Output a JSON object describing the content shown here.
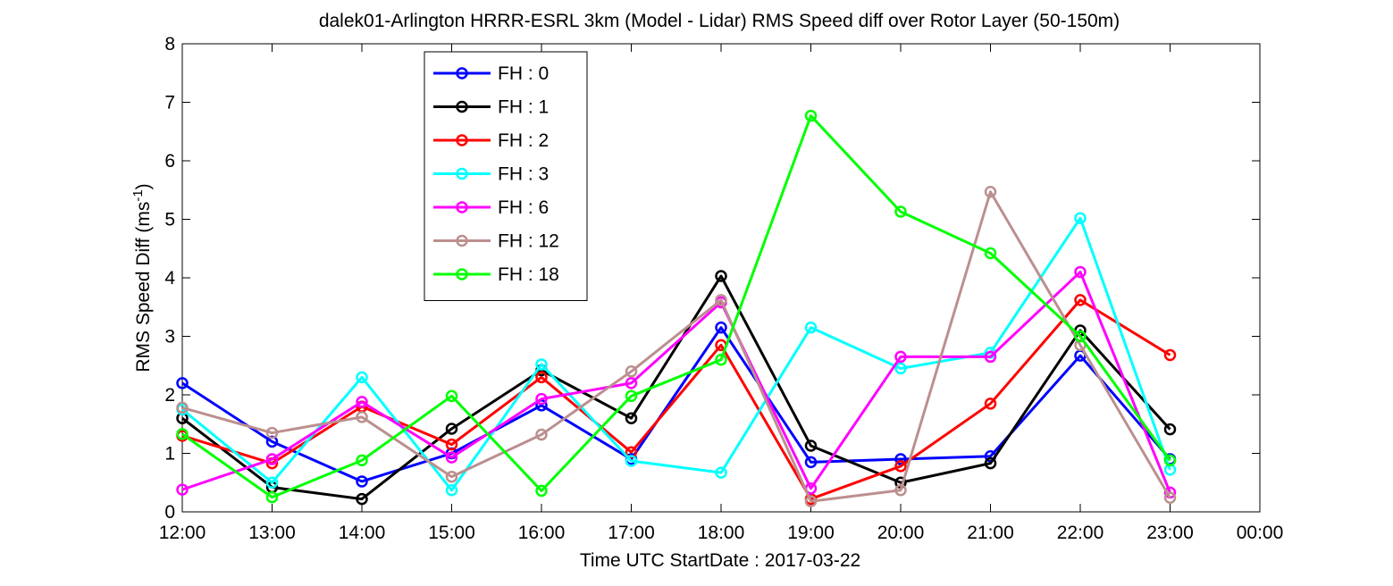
{
  "chart_data": {
    "type": "line",
    "title": "dalek01-Arlington HRRR-ESRL 3km (Model - Lidar) RMS Speed diff over Rotor Layer (50-150m)",
    "ylabel_main": "RMS Speed Diff (ms",
    "ylabel_sup": "-1",
    "ylabel_close": ")",
    "xlabel": "Time UTC    StartDate : 2017-03-22",
    "x_ticks": [
      "12:00",
      "13:00",
      "14:00",
      "15:00",
      "16:00",
      "17:00",
      "18:00",
      "19:00",
      "20:00",
      "21:00",
      "22:00",
      "23:00",
      "00:00"
    ],
    "y_ticks": [
      "0",
      "1",
      "2",
      "3",
      "4",
      "5",
      "6",
      "7",
      "8"
    ],
    "xlim": [
      12,
      24
    ],
    "ylim": [
      0,
      8
    ],
    "legend_position": "upper-left",
    "series": [
      {
        "name": "FH : 0",
        "color": "#0000ff",
        "x": [
          12,
          13,
          14,
          15,
          16,
          17,
          18,
          19,
          20,
          21,
          22,
          23
        ],
        "values": [
          2.2,
          1.2,
          0.52,
          1.0,
          1.82,
          0.9,
          3.15,
          0.85,
          0.9,
          0.95,
          2.67,
          0.9
        ]
      },
      {
        "name": "FH : 1",
        "color": "#000000",
        "x": [
          12,
          13,
          14,
          15,
          16,
          17,
          18,
          19,
          20,
          21,
          22,
          23
        ],
        "values": [
          1.6,
          0.42,
          0.22,
          1.42,
          2.42,
          1.6,
          4.03,
          1.13,
          0.5,
          0.83,
          3.1,
          1.41
        ]
      },
      {
        "name": "FH : 2",
        "color": "#ff0000",
        "x": [
          12,
          13,
          14,
          15,
          16,
          17,
          18,
          19,
          20,
          21,
          22,
          23
        ],
        "values": [
          1.3,
          0.83,
          1.8,
          1.15,
          2.3,
          1.02,
          2.85,
          0.22,
          0.78,
          1.85,
          3.62,
          2.68
        ]
      },
      {
        "name": "FH : 3",
        "color": "#00ffff",
        "x": [
          12,
          13,
          14,
          15,
          16,
          17,
          18,
          19,
          20,
          21,
          22,
          23
        ],
        "values": [
          1.75,
          0.5,
          2.3,
          0.37,
          2.52,
          0.87,
          0.67,
          3.15,
          2.45,
          2.72,
          5.02,
          0.72
        ]
      },
      {
        "name": "FH : 6",
        "color": "#ff00ff",
        "x": [
          12,
          13,
          14,
          15,
          16,
          17,
          18,
          19,
          20,
          21,
          22,
          23
        ],
        "values": [
          0.38,
          0.9,
          1.88,
          0.93,
          1.93,
          2.2,
          3.58,
          0.4,
          2.65,
          2.65,
          4.1,
          0.33
        ]
      },
      {
        "name": "FH : 12",
        "color": "#bc8f8f",
        "x": [
          12,
          13,
          14,
          15,
          16,
          17,
          18,
          19,
          20,
          21,
          22,
          23
        ],
        "values": [
          1.78,
          1.35,
          1.62,
          0.6,
          1.32,
          2.4,
          3.62,
          0.18,
          0.37,
          5.47,
          2.85,
          0.24
        ]
      },
      {
        "name": "FH : 18",
        "color": "#00ff00",
        "x": [
          12,
          13,
          14,
          15,
          16,
          17,
          18,
          19,
          20,
          21,
          22,
          23
        ],
        "values": [
          1.33,
          0.25,
          0.88,
          1.98,
          0.36,
          1.98,
          2.6,
          6.77,
          5.13,
          4.42,
          3.0,
          0.88
        ]
      }
    ]
  }
}
